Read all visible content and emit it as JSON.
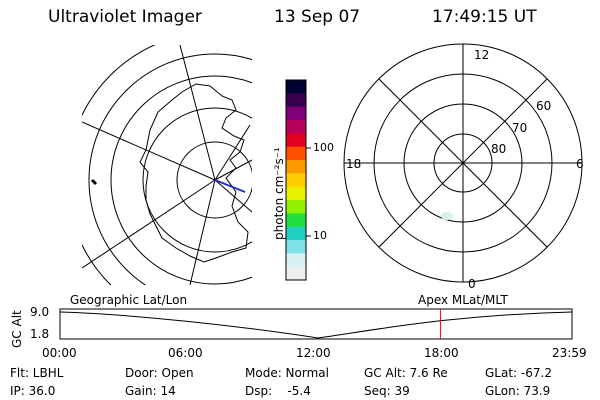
{
  "header": {
    "instrument": "Ultraviolet Imager",
    "date": "13 Sep 07",
    "time": "17:49:15 UT"
  },
  "colorbar": {
    "label": "photon cm⁻²s⁻¹",
    "ticks": [
      "100",
      "10"
    ],
    "colors": [
      "#000033",
      "#3a0050",
      "#80007a",
      "#b8005a",
      "#e00020",
      "#ff5000",
      "#ff9900",
      "#ffcc00",
      "#e8f000",
      "#90f000",
      "#20e040",
      "#20d0c0",
      "#80e0e8",
      "#d8f0f4",
      "#eeeeee"
    ]
  },
  "polar_map": {
    "mlt_labels": [
      "12",
      "18",
      "6",
      "0"
    ],
    "lat_labels": [
      "60",
      "70",
      "80"
    ]
  },
  "timeline": {
    "left_label": "Geographic Lat/Lon",
    "right_label": "Apex MLat/MLT",
    "y_axis_label": "GC Alt",
    "y_top": "9.0",
    "y_bottom": "1.8",
    "x_ticks": [
      "00:00",
      "06:00",
      "12:00",
      "18:00",
      "23:59"
    ],
    "current_time_fraction": 0.743,
    "marker_color": "#ff0000"
  },
  "status": {
    "flt": "Flt: LBHL",
    "ip": "IP: 36.0",
    "door": "Door: Open",
    "gain": "Gain: 14",
    "mode": "Mode: Normal",
    "dsp": "Dsp:    -5.4",
    "gc_alt": "GC Alt: 7.6 Re",
    "seq": "Seq: 39",
    "glat": "GLat: -67.2",
    "glon": "GLon: 73.9"
  }
}
